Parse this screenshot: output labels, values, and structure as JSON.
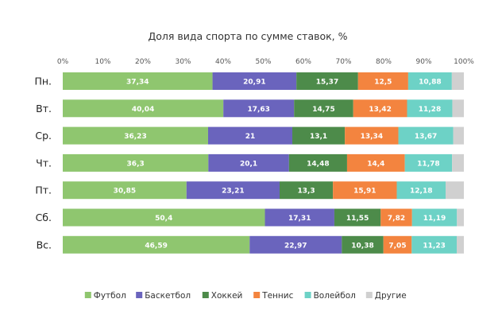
{
  "chart_data": {
    "type": "bar",
    "orientation": "horizontal",
    "stacked": true,
    "title": "Доля вида спорта по сумме ставок, %",
    "categories": [
      "Пн.",
      "Вт.",
      "Ср.",
      "Чт.",
      "Пт.",
      "Сб.",
      "Вс."
    ],
    "series": [
      {
        "name": "Футбол",
        "color": "#8fc66f",
        "values": [
          37.34,
          40.04,
          36.23,
          36.3,
          30.85,
          50.4,
          46.59
        ],
        "labels": [
          "37,34",
          "40,04",
          "36,23",
          "36,3",
          "30,85",
          "50,4",
          "46,59"
        ]
      },
      {
        "name": "Баскетбол",
        "color": "#6a64bd",
        "values": [
          20.91,
          17.63,
          21,
          20.1,
          23.21,
          17.31,
          22.97
        ],
        "labels": [
          "20,91",
          "17,63",
          "21",
          "20,1",
          "23,21",
          "17,31",
          "22,97"
        ]
      },
      {
        "name": "Хоккей",
        "color": "#4d8b4a",
        "values": [
          15.37,
          14.75,
          13.1,
          14.48,
          13.3,
          11.55,
          10.38
        ],
        "labels": [
          "15,37",
          "14,75",
          "13,1",
          "14,48",
          "13,3",
          "11,55",
          "10,38"
        ]
      },
      {
        "name": "Теннис",
        "color": "#f3843f",
        "values": [
          12.5,
          13.42,
          13.34,
          14.4,
          15.91,
          7.82,
          7.05
        ],
        "labels": [
          "12,5",
          "13,42",
          "13,34",
          "14,4",
          "15,91",
          "7,82",
          "7,05"
        ]
      },
      {
        "name": "Волейбол",
        "color": "#6dd2c6",
        "values": [
          10.88,
          11.28,
          13.67,
          11.78,
          12.18,
          11.19,
          11.23
        ],
        "labels": [
          "10,88",
          "11,28",
          "13,67",
          "11,78",
          "12,18",
          "11,19",
          "11,23"
        ]
      },
      {
        "name": "Другие",
        "color": "#d0d0d0",
        "values": [
          3.0,
          2.88,
          2.66,
          2.94,
          4.55,
          1.73,
          1.78
        ],
        "labels": [
          "",
          "",
          "",
          "",
          "",
          "",
          ""
        ]
      }
    ],
    "x_ticks": [
      "0%",
      "10%",
      "20%",
      "30%",
      "40%",
      "50%",
      "60%",
      "70%",
      "80%",
      "90%",
      "100%"
    ],
    "xlim": [
      0,
      100
    ],
    "grid": false,
    "legend_position": "bottom"
  }
}
